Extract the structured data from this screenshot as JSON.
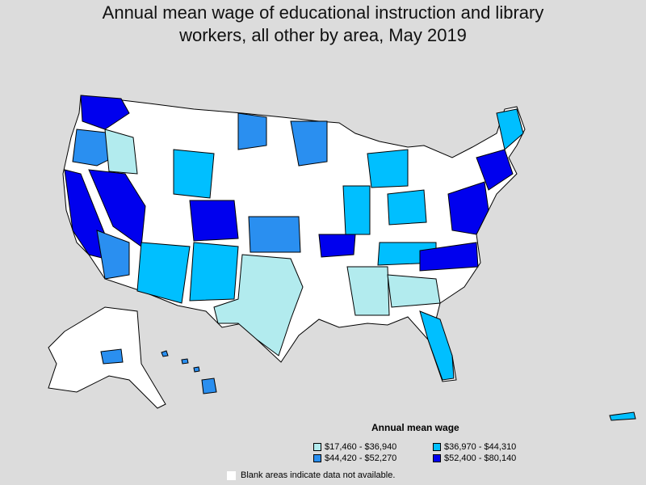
{
  "title": {
    "line1": "Annual mean wage of educational instruction and library",
    "line2": "workers, all other by area, May 2019"
  },
  "legend": {
    "title": "Annual mean wage",
    "items": [
      {
        "label": "$17,460 - $36,940",
        "color": "#b2ebee"
      },
      {
        "label": "$36,970 - $44,310",
        "color": "#00bfff"
      },
      {
        "label": "$44,420 - $52,270",
        "color": "#2a8ff0"
      },
      {
        "label": "$52,400 - $80,140",
        "color": "#0000ee"
      }
    ],
    "blank_note": "Blank areas indicate data not available."
  },
  "colors": {
    "background": "#dcdcdc",
    "no_data": "#ffffff",
    "border": "#000000"
  }
}
